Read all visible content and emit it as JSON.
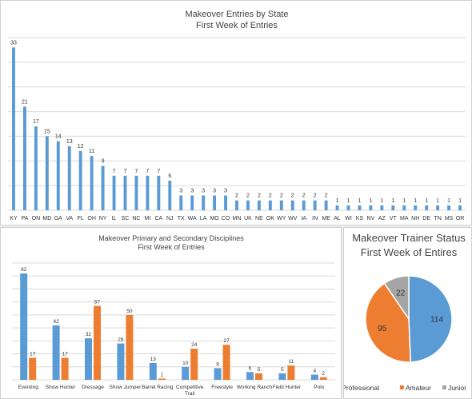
{
  "chart_data": [
    {
      "type": "bar",
      "title": "Makeover Entries by State",
      "subtitle": "First Week of Entries",
      "categories": [
        "KY",
        "PA",
        "ON",
        "MD",
        "GA",
        "VA",
        "FL",
        "OH",
        "NY",
        "IL",
        "SC",
        "NC",
        "MI",
        "CA",
        "NJ",
        "TX",
        "WA",
        "LA",
        "MO",
        "CO",
        "MN",
        "UK",
        "NE",
        "OK",
        "WY",
        "WV",
        "IA",
        "IN",
        "ME",
        "AL",
        "WI",
        "KS",
        "NV",
        "AZ",
        "VT",
        "MA",
        "NH",
        "DE",
        "TN",
        "MS",
        "OR"
      ],
      "values": [
        33,
        21,
        17,
        15,
        14,
        13,
        12,
        11,
        9,
        7,
        7,
        7,
        7,
        7,
        6,
        3,
        3,
        3,
        3,
        3,
        2,
        2,
        2,
        2,
        2,
        2,
        2,
        2,
        2,
        1,
        1,
        1,
        1,
        1,
        1,
        1,
        1,
        1,
        1,
        1,
        1
      ],
      "ylim": [
        0,
        35
      ],
      "grid": true,
      "colors": {
        "bar": "#5b9bd5"
      }
    },
    {
      "type": "bar",
      "title": "Makeover Primary and Secondary Disciplines",
      "subtitle": "First Week of Entries",
      "categories": [
        [
          "Eventing"
        ],
        [
          "Show Hunter"
        ],
        [
          "Dressage"
        ],
        [
          "Show Jumper"
        ],
        [
          "Barrel Racing"
        ],
        [
          "Competitive",
          "Trail"
        ],
        [
          "Freestyle"
        ],
        [
          "Working Ranch"
        ],
        [
          "Field Hunter"
        ],
        [
          "Polo"
        ]
      ],
      "series": [
        {
          "values": [
            82,
            42,
            32,
            28,
            13,
            10,
            9,
            6,
            5,
            4
          ]
        },
        {
          "values": [
            17,
            17,
            57,
            50,
            1,
            24,
            27,
            5,
            11,
            2
          ]
        }
      ],
      "ylim": [
        0,
        90
      ],
      "grid": true,
      "colors": {
        "primary": "#5b9bd5",
        "secondary": "#ed7d31"
      }
    },
    {
      "type": "pie",
      "title": "Makeover Trainer Status",
      "subtitle": "First Week of Entires",
      "slices": [
        {
          "name": "Professional",
          "value": 114,
          "color": "#5b9bd5"
        },
        {
          "name": "Amateur",
          "value": 95,
          "color": "#ed7d31"
        },
        {
          "name": "Junior",
          "value": 22,
          "color": "#a5a5a5"
        }
      ],
      "legend": "bottom"
    }
  ]
}
